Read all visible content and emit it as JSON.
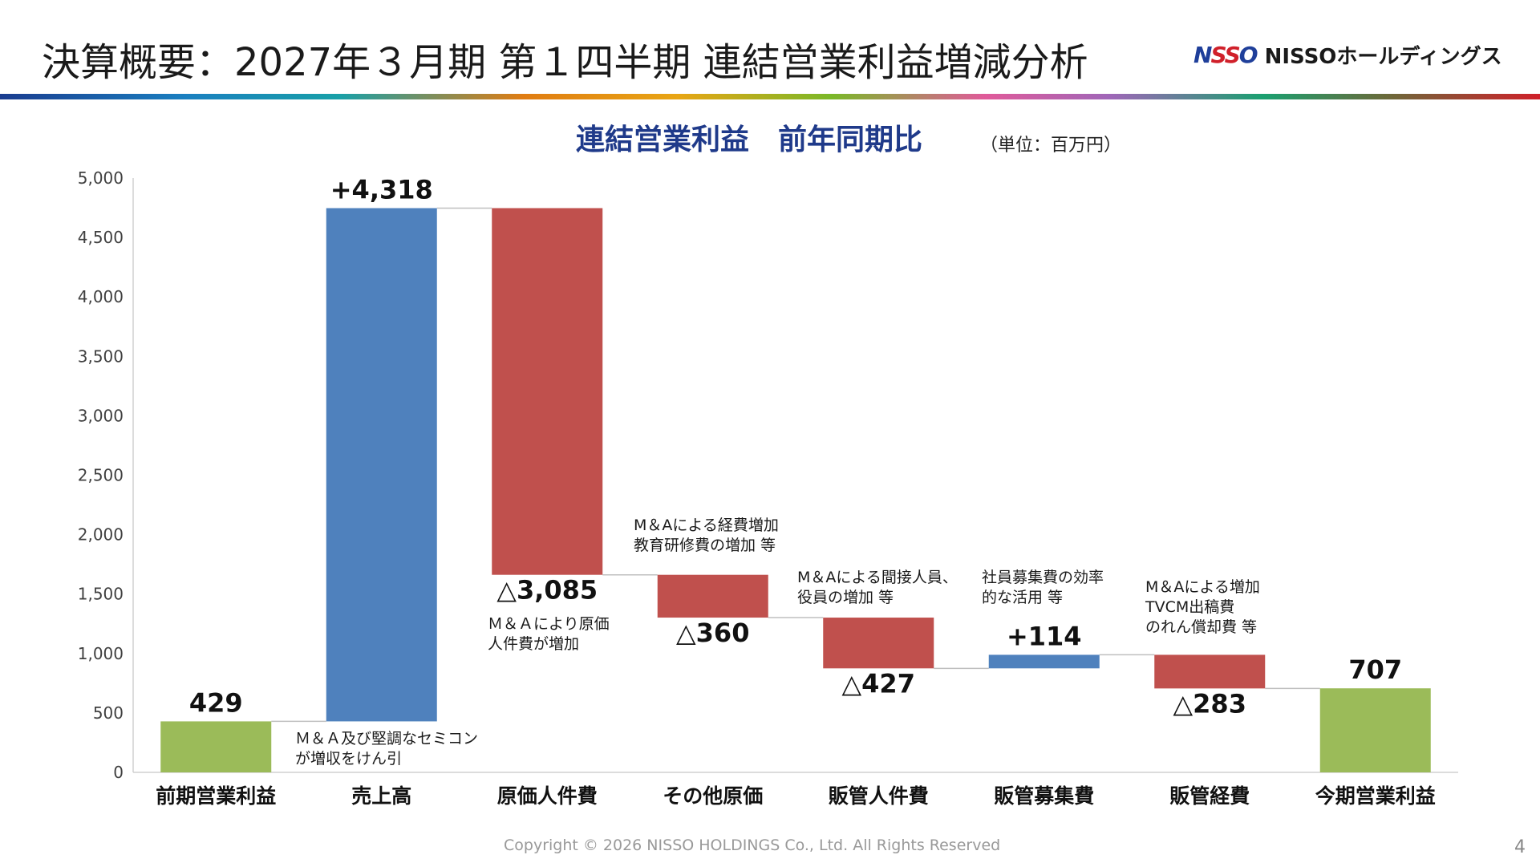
{
  "page": {
    "title": "決算概要：2027年３月期 第１四半期 連結営業利益増減分析",
    "logo": {
      "mark_n": "N",
      "mark_ss": "SS",
      "mark_o": "O",
      "text": "NISSOホールディングス"
    },
    "footer": "Copyright © 2026 NISSO HOLDINGS Co., Ltd. All Rights Reserved",
    "page_number": "4"
  },
  "chart_data": {
    "type": "bar",
    "subtype": "waterfall",
    "title": "連結営業利益　前年同期比",
    "unit_label": "（単位：百万円）",
    "ylim": [
      0,
      5000
    ],
    "y_ticks": [
      "0",
      "500",
      "1,000",
      "1,500",
      "2,000",
      "2,500",
      "3,000",
      "3,500",
      "4,000",
      "4,500",
      "5,000"
    ],
    "y_tick_values": [
      0,
      500,
      1000,
      1500,
      2000,
      2500,
      3000,
      3500,
      4000,
      4500,
      5000
    ],
    "colors": {
      "total": "#9bbb59",
      "increase": "#4f81bd",
      "decrease": "#c0504d",
      "connector": "#bfbfbf"
    },
    "bars": [
      {
        "category": "前期営業利益",
        "kind": "total",
        "start": 0,
        "end": 429,
        "label": "429"
      },
      {
        "category": "売上高",
        "kind": "increase",
        "start": 429,
        "end": 4747,
        "label": "+4,318"
      },
      {
        "category": "原価人件費",
        "kind": "decrease",
        "start": 4747,
        "end": 1662,
        "label": "△3,085"
      },
      {
        "category": "その他原価",
        "kind": "decrease",
        "start": 1662,
        "end": 1302,
        "label": "△360"
      },
      {
        "category": "販管人件費",
        "kind": "decrease",
        "start": 1302,
        "end": 875,
        "label": "△427"
      },
      {
        "category": "販管募集費",
        "kind": "increase",
        "start": 875,
        "end": 989,
        "label": "+114"
      },
      {
        "category": "販管経費",
        "kind": "decrease",
        "start": 989,
        "end": 706,
        "label": "△283"
      },
      {
        "category": "今期営業利益",
        "kind": "total",
        "start": 0,
        "end": 707,
        "label": "707"
      }
    ],
    "annotations": [
      {
        "for": "売上高",
        "lines": [
          "Ｍ＆Ａ及び堅調なセミコン",
          "が増収をけん引"
        ]
      },
      {
        "for": "原価人件費",
        "lines": [
          "Ｍ＆Ａにより原価",
          "人件費が増加"
        ]
      },
      {
        "for": "その他原価",
        "lines": [
          "M＆Aによる経費増加",
          "教育研修費の増加 等"
        ]
      },
      {
        "for": "販管人件費",
        "lines": [
          "M＆Aによる間接人員、",
          "役員の増加 等"
        ]
      },
      {
        "for": "販管募集費",
        "lines": [
          "社員募集費の効率",
          "的な活用 等"
        ]
      },
      {
        "for": "販管経費",
        "lines": [
          "M＆Aによる増加",
          "TVCM出稿費",
          "のれん償却費 等"
        ]
      }
    ]
  }
}
